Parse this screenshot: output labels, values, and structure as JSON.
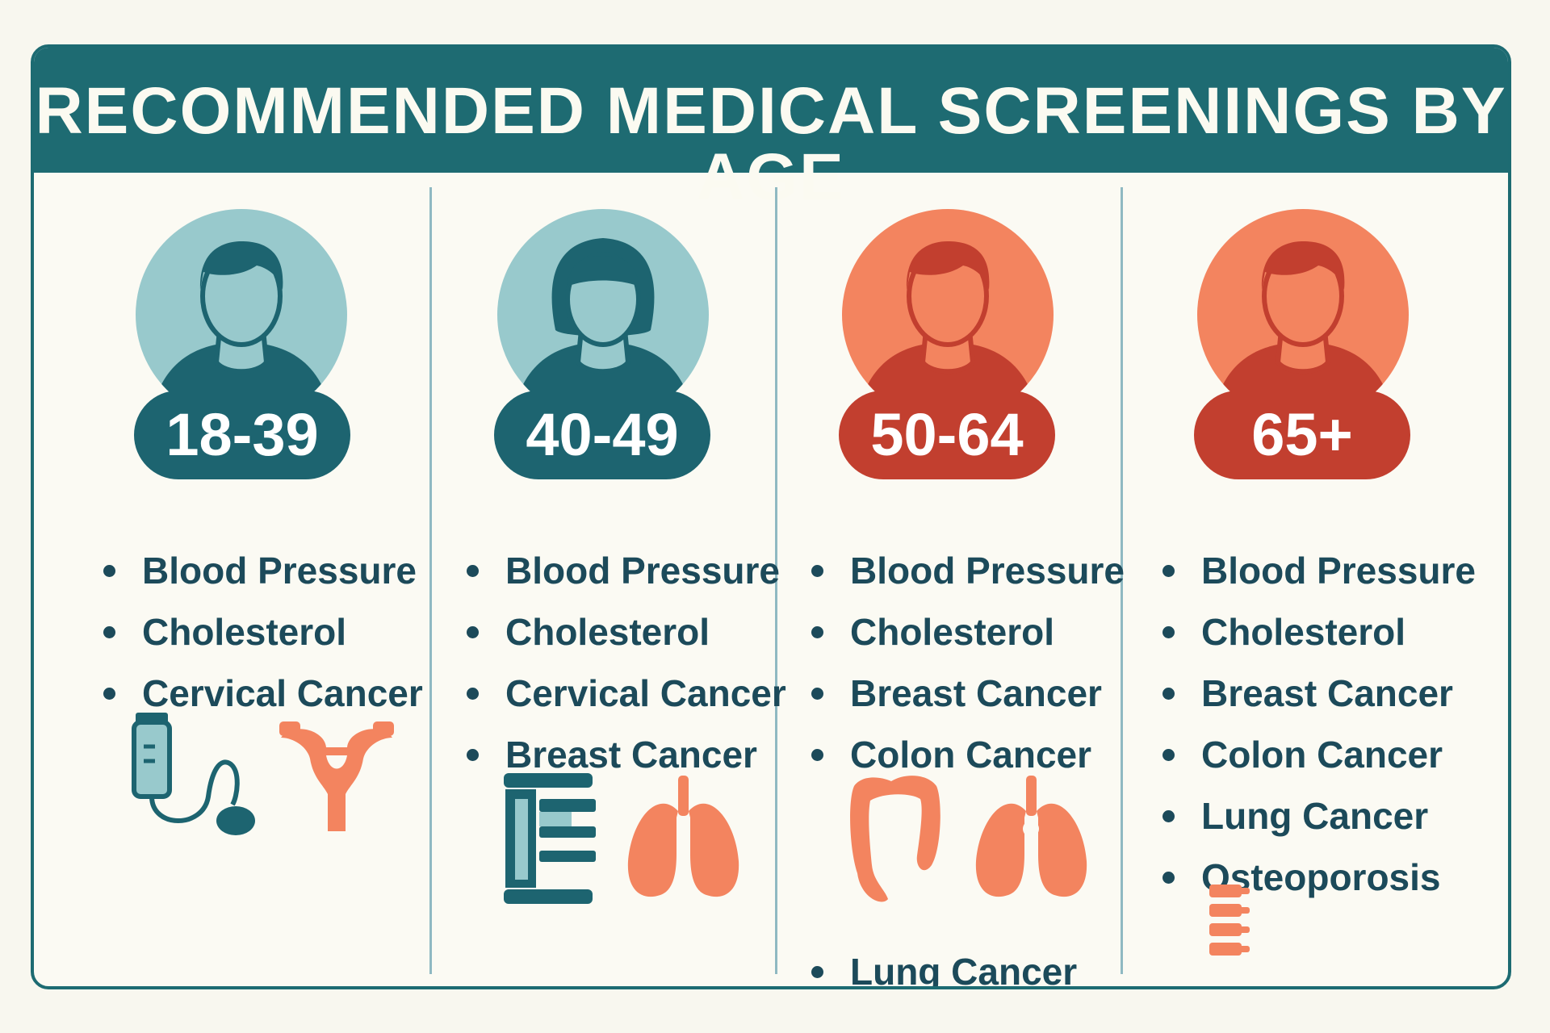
{
  "title": "RECOMMENDED MEDICAL SCREENINGS BY AGE",
  "colors": {
    "header": "#1e6b72",
    "teal_light": "#98c9cc",
    "teal_dark": "#1d6470",
    "coral_light": "#f3845f",
    "coral_dark": "#c23f2f",
    "text": "#1c4a5a"
  },
  "groups": [
    {
      "age": "18-39",
      "avatar_icon": "male-person-icon",
      "screenings": [
        "Blood Pressure",
        "Cholesterol",
        "Cervical Cancer"
      ],
      "icons": [
        "blood-pressure-monitor-icon",
        "uterus-icon"
      ]
    },
    {
      "age": "40-49",
      "avatar_icon": "female-person-icon",
      "screenings": [
        "Blood Pressure",
        "Cholesterol",
        "Cervical Cancer",
        "Breast Cancer"
      ],
      "icons": [
        "mammography-machine-icon",
        "lungs-icon"
      ]
    },
    {
      "age": "50-64",
      "avatar_icon": "male-person-icon",
      "screenings": [
        "Blood Pressure",
        "Cholesterol",
        "Breast Cancer",
        "Colon Cancer"
      ],
      "extra_screening": "Lung Cancer",
      "icons": [
        "colon-icon",
        "lungs-icon"
      ]
    },
    {
      "age": "65+",
      "avatar_icon": "male-person-icon",
      "screenings": [
        "Blood Pressure",
        "Cholesterol",
        "Breast Cancer",
        "Colon Cancer",
        "Lung Cancer",
        "Osteoporosis"
      ],
      "icons": [
        "spine-icon"
      ]
    }
  ]
}
